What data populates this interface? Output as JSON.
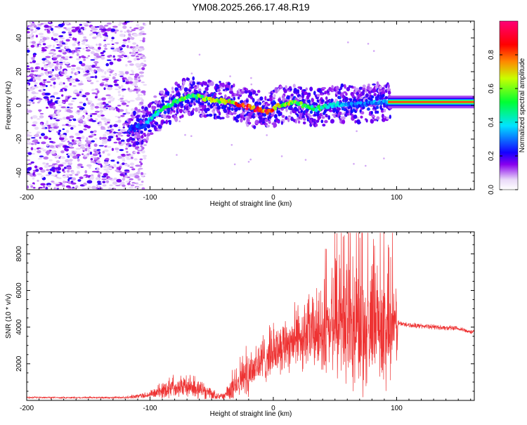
{
  "title": "YM08.2025.266.17.48.R19",
  "chart_data": [
    {
      "type": "heatmap",
      "name": "spectrogram",
      "xlabel": "Height of straight line (km)",
      "ylabel": "Frequency (Hz)",
      "xlim": [
        -200,
        163
      ],
      "ylim": [
        -50,
        50
      ],
      "xticks": [
        -200,
        -100,
        0,
        100
      ],
      "yticks": [
        -40,
        -20,
        0,
        20,
        40
      ],
      "colorbar": {
        "label": "Normalized spectral amplitude",
        "range": [
          0,
          1
        ],
        "ticks": [
          0.0,
          0.2,
          0.4,
          0.6,
          0.8
        ]
      },
      "ridge": {
        "x": [
          -115,
          -105,
          -95,
          -85,
          -75,
          -65,
          -55,
          -45,
          -35,
          -25,
          -15,
          -5,
          5,
          15,
          25,
          35,
          45,
          55,
          65,
          75,
          85,
          95,
          100,
          120,
          140,
          163
        ],
        "freq": [
          -13,
          -12,
          -5,
          0,
          4,
          6,
          4,
          3,
          2,
          0,
          -2,
          -4,
          0,
          2,
          0,
          -2,
          0,
          1,
          0,
          1,
          2,
          2,
          2,
          2,
          2,
          2
        ],
        "amplitude": [
          0.25,
          0.3,
          0.45,
          0.5,
          0.55,
          0.55,
          0.6,
          0.65,
          0.7,
          0.85,
          0.9,
          0.85,
          0.7,
          0.6,
          0.55,
          0.5,
          0.45,
          0.35,
          0.3,
          0.3,
          0.35,
          0.4,
          0.95,
          0.95,
          0.95,
          0.95
        ]
      },
      "noise_region": [
        -200,
        -110
      ]
    },
    {
      "type": "line",
      "name": "snr",
      "xlabel": "Height of straight line (km)",
      "ylabel": "SNR (10 * v/v)",
      "xlim": [
        -200,
        163
      ],
      "ylim": [
        0,
        9200
      ],
      "xticks": [
        -200,
        -100,
        0,
        100
      ],
      "yticks": [
        2000,
        4000,
        6000,
        8000
      ],
      "color": "#ee3333",
      "envelope": {
        "x": [
          -200,
          -120,
          -100,
          -90,
          -80,
          -70,
          -60,
          -50,
          -40,
          -35,
          -30,
          -20,
          -10,
          0,
          10,
          20,
          30,
          40,
          50,
          60,
          70,
          80,
          90,
          100,
          101,
          110,
          130,
          150,
          163
        ],
        "base": [
          150,
          150,
          300,
          500,
          800,
          700,
          600,
          300,
          200,
          500,
          1000,
          1500,
          2000,
          2600,
          3000,
          3300,
          3500,
          3600,
          3600,
          3500,
          3700,
          3800,
          3800,
          3800,
          4200,
          4100,
          4000,
          3900,
          3700
        ],
        "spread": [
          60,
          80,
          300,
          700,
          900,
          900,
          800,
          400,
          300,
          900,
          1500,
          2000,
          2000,
          2000,
          2200,
          2600,
          3000,
          3400,
          3800,
          4400,
          4800,
          4800,
          4500,
          4000,
          250,
          200,
          200,
          200,
          200
        ]
      }
    }
  ]
}
